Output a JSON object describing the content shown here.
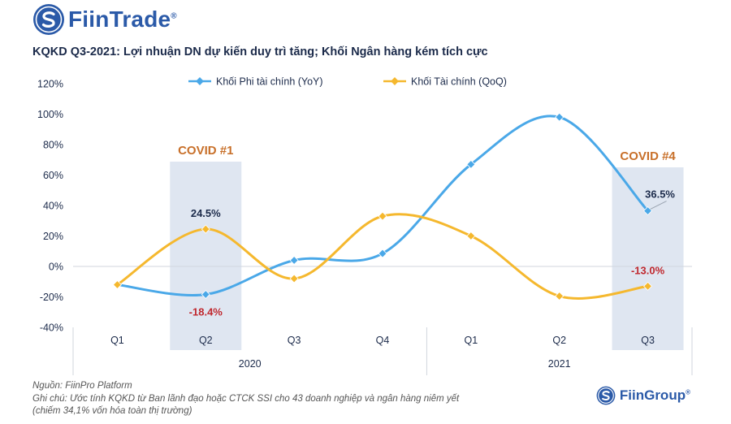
{
  "brand": {
    "name": "FiinTrade",
    "reg": "®"
  },
  "title": "KQKD Q3-2021: Lợi nhuận DN dự kiến duy trì tăng; Khối Ngân hàng kém tích cực",
  "footer": {
    "source": "Nguồn: FiinPro Platform",
    "note_line1": "Ghi chú: Ước tính KQKD từ Ban lãnh đạo hoặc CTCK SSI cho 43 doanh nghiệp và ngân hàng niêm yết",
    "note_line2": "(chiếm 34,1% vốn hóa toàn thị trường)",
    "logo_text": "FiinGroup",
    "logo_reg": "®"
  },
  "chart_data": {
    "type": "line",
    "categories": [
      "Q1",
      "Q2",
      "Q3",
      "Q4",
      "Q1",
      "Q2",
      "Q3"
    ],
    "category_groups": [
      {
        "label": "2020",
        "from": 0,
        "to": 3
      },
      {
        "label": "2021",
        "from": 4,
        "to": 6
      }
    ],
    "series": [
      {
        "name": "Khối Phi tài chính (YoY)",
        "color": "#4aa8e8",
        "values": [
          -12,
          -18.4,
          4,
          8.5,
          67,
          98,
          36.5
        ]
      },
      {
        "name": "Khối Tài chính (QoQ)",
        "color": "#f5b82e",
        "values": [
          -12,
          24.5,
          -8,
          33,
          20,
          -19.5,
          -13.0
        ]
      }
    ],
    "ylim": [
      -40,
      120
    ],
    "yticks": [
      "120%",
      "100%",
      "80%",
      "60%",
      "40%",
      "20%",
      "0%",
      "-20%",
      "-40%"
    ],
    "ytick_values": [
      120,
      100,
      80,
      60,
      40,
      20,
      0,
      -20,
      -40
    ],
    "legend_position": "top-center",
    "highlights": [
      {
        "index": 1,
        "label": "COVID #1",
        "color": "#c8702a"
      },
      {
        "index": 6,
        "label": "COVID #4",
        "color": "#c8702a"
      }
    ],
    "data_labels": [
      {
        "series": 1,
        "index": 1,
        "text": "24.5%",
        "color": "#1b2a4a",
        "placement": "above"
      },
      {
        "series": 0,
        "index": 1,
        "text": "-18.4%",
        "color": "#c0282e",
        "placement": "below"
      },
      {
        "series": 0,
        "index": 6,
        "text": "36.5%",
        "color": "#1b2a4a",
        "placement": "above-right"
      },
      {
        "series": 1,
        "index": 6,
        "text": "-13.0%",
        "color": "#c0282e",
        "placement": "above"
      }
    ],
    "grid": false
  }
}
